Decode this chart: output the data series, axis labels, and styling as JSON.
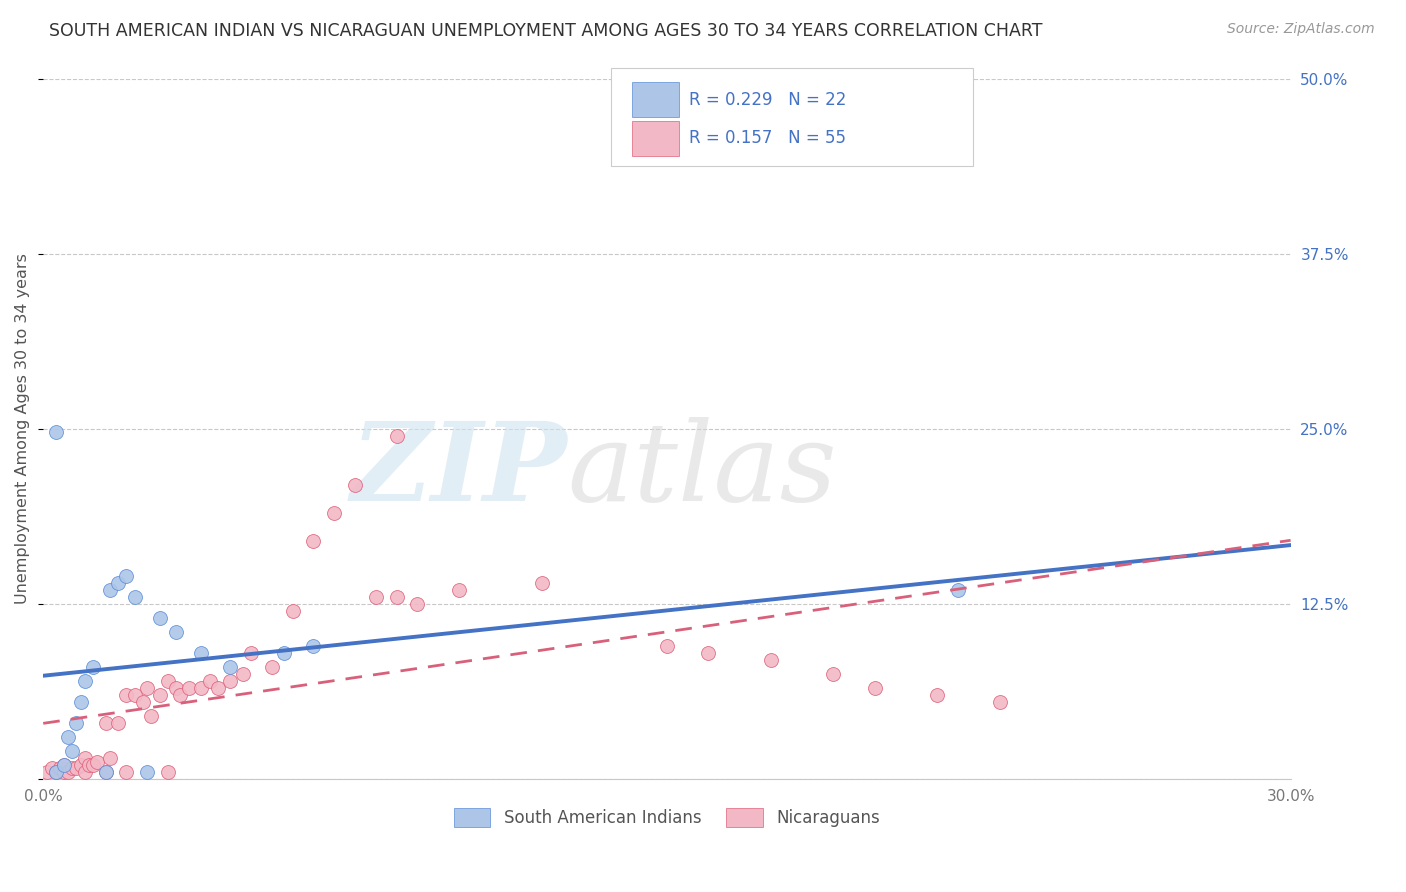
{
  "title": "SOUTH AMERICAN INDIAN VS NICARAGUAN UNEMPLOYMENT AMONG AGES 30 TO 34 YEARS CORRELATION CHART",
  "source": "Source: ZipAtlas.com",
  "ylabel": "Unemployment Among Ages 30 to 34 years",
  "xlim": [
    0.0,
    0.3
  ],
  "ylim": [
    0.0,
    0.5
  ],
  "yticks": [
    0.0,
    0.125,
    0.25,
    0.375,
    0.5
  ],
  "ytick_labels": [
    "",
    "12.5%",
    "25.0%",
    "37.5%",
    "50.0%"
  ],
  "xticks": [
    0.0,
    0.075,
    0.15,
    0.225,
    0.3
  ],
  "grid_color": "#c8c8c8",
  "background_color": "#ffffff",
  "blue_fill": "#adc6e8",
  "pink_fill": "#f2b8c6",
  "blue_edge": "#5b8dd9",
  "pink_edge": "#e0607a",
  "blue_line": "#4472c4",
  "pink_line": "#d9607a",
  "legend_text_color": "#4472c4",
  "blue_R": "0.229",
  "blue_N": "22",
  "pink_R": "0.157",
  "pink_N": "55",
  "blue_x": [
    0.003,
    0.005,
    0.006,
    0.007,
    0.008,
    0.009,
    0.01,
    0.012,
    0.015,
    0.016,
    0.018,
    0.02,
    0.022,
    0.025,
    0.028,
    0.032,
    0.038,
    0.045,
    0.058,
    0.065,
    0.22,
    0.003
  ],
  "blue_y": [
    0.005,
    0.01,
    0.03,
    0.02,
    0.04,
    0.055,
    0.07,
    0.08,
    0.005,
    0.135,
    0.14,
    0.145,
    0.13,
    0.005,
    0.115,
    0.105,
    0.09,
    0.08,
    0.09,
    0.095,
    0.135,
    0.248
  ],
  "pink_x": [
    0.001,
    0.002,
    0.003,
    0.004,
    0.005,
    0.005,
    0.006,
    0.007,
    0.008,
    0.009,
    0.01,
    0.01,
    0.011,
    0.012,
    0.013,
    0.015,
    0.015,
    0.016,
    0.018,
    0.02,
    0.02,
    0.022,
    0.024,
    0.025,
    0.026,
    0.028,
    0.03,
    0.03,
    0.032,
    0.033,
    0.035,
    0.038,
    0.04,
    0.042,
    0.045,
    0.048,
    0.05,
    0.055,
    0.06,
    0.065,
    0.07,
    0.075,
    0.08,
    0.085,
    0.09,
    0.1,
    0.12,
    0.15,
    0.16,
    0.175,
    0.19,
    0.2,
    0.215,
    0.23,
    0.085
  ],
  "pink_y": [
    0.005,
    0.008,
    0.005,
    0.008,
    0.005,
    0.01,
    0.005,
    0.008,
    0.008,
    0.01,
    0.005,
    0.015,
    0.01,
    0.01,
    0.012,
    0.005,
    0.04,
    0.015,
    0.04,
    0.005,
    0.06,
    0.06,
    0.055,
    0.065,
    0.045,
    0.06,
    0.005,
    0.07,
    0.065,
    0.06,
    0.065,
    0.065,
    0.07,
    0.065,
    0.07,
    0.075,
    0.09,
    0.08,
    0.12,
    0.17,
    0.19,
    0.21,
    0.13,
    0.13,
    0.125,
    0.135,
    0.14,
    0.095,
    0.09,
    0.085,
    0.075,
    0.065,
    0.06,
    0.055,
    0.245
  ]
}
